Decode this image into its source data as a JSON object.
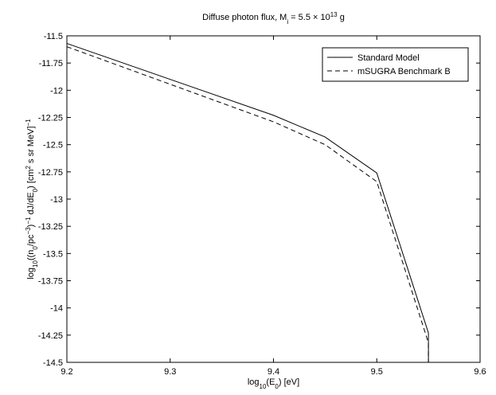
{
  "chart_data": {
    "type": "line",
    "title": [
      {
        "text": "Diffuse photon flux, M"
      },
      {
        "text": "i",
        "shift": "sub"
      },
      {
        "text": " = 5.5 × 10"
      },
      {
        "text": "13",
        "shift": "super"
      },
      {
        "text": " g"
      }
    ],
    "x_label": [
      {
        "text": "log"
      },
      {
        "text": "10",
        "shift": "sub"
      },
      {
        "text": "(E"
      },
      {
        "text": "0",
        "shift": "sub"
      },
      {
        "text": ") [eV]"
      }
    ],
    "y_label": [
      {
        "text": "log"
      },
      {
        "text": "10",
        "shift": "sub"
      },
      {
        "text": "((n"
      },
      {
        "text": "0",
        "shift": "sub"
      },
      {
        "text": "/pc"
      },
      {
        "text": "−3",
        "shift": "super"
      },
      {
        "text": ")"
      },
      {
        "text": "−1",
        "shift": "super"
      },
      {
        "text": " dJ/dE"
      },
      {
        "text": "0",
        "shift": "sub"
      },
      {
        "text": ") [cm"
      },
      {
        "text": "2",
        "shift": "super"
      },
      {
        "text": " s sr MeV]"
      },
      {
        "text": "−1",
        "shift": "super"
      }
    ],
    "x": [
      9.2,
      9.4,
      9.45,
      9.5,
      9.55,
      9.55
    ],
    "series": [
      {
        "name": "Standard Model",
        "color": "#000000",
        "style": "solid",
        "values": [
          -11.57,
          -12.23,
          -12.43,
          -12.76,
          -14.23,
          -14.5
        ]
      },
      {
        "name": "mSUGRA Benchmark B",
        "color": "#000000",
        "style": "dashed",
        "values": [
          -11.6,
          -12.29,
          -12.5,
          -12.84,
          -14.32,
          -14.5
        ]
      }
    ],
    "xlim": [
      9.2,
      9.6
    ],
    "xticks": [
      9.2,
      9.3,
      9.4,
      9.5,
      9.6
    ],
    "ylim": [
      -14.5,
      -11.5
    ],
    "yticks": [
      -11.5,
      -11.75,
      -12,
      -12.25,
      -12.5,
      -12.75,
      -13,
      -13.25,
      -13.5,
      -13.75,
      -14,
      -14.25,
      -14.5
    ],
    "legend": "upper right"
  }
}
